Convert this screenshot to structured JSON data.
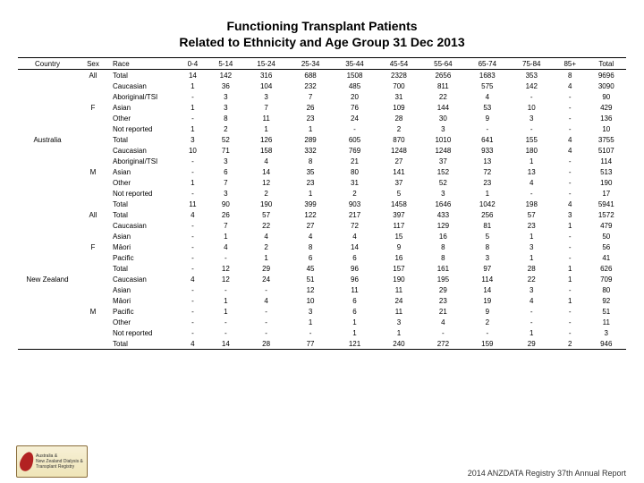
{
  "title": {
    "line1": "Functioning Transplant Patients",
    "line2": "Related to Ethnicity and Age Group 31 Dec 2013",
    "fontsize": 14,
    "color": "#000000"
  },
  "colors": {
    "background": "#ffffff",
    "border": "#000000",
    "text": "#000000",
    "logo_bg_top": "#f7f0d6",
    "logo_bg_bottom": "#efe5b8",
    "logo_border": "#8a6d3b",
    "logo_kidney": "#b22222"
  },
  "columns": [
    "Country",
    "Sex",
    "Race",
    "0-4",
    "5-14",
    "15-24",
    "25-34",
    "35-44",
    "45-54",
    "55-64",
    "65-74",
    "75-84",
    "85+",
    "Total"
  ],
  "rows": [
    {
      "country": "",
      "sex": "All",
      "race": "Total",
      "v": [
        "14",
        "142",
        "316",
        "688",
        "1508",
        "2328",
        "2656",
        "1683",
        "353",
        "8",
        "9696"
      ]
    },
    {
      "country": "",
      "sex": "",
      "race": "Caucasian",
      "v": [
        "1",
        "36",
        "104",
        "232",
        "485",
        "700",
        "811",
        "575",
        "142",
        "4",
        "3090"
      ]
    },
    {
      "country": "",
      "sex": "",
      "race": "Aboriginal/TSI",
      "v": [
        "-",
        "3",
        "3",
        "7",
        "20",
        "31",
        "22",
        "4",
        "-",
        "-",
        "90"
      ]
    },
    {
      "country": "",
      "sex": "F",
      "race": "Asian",
      "v": [
        "1",
        "3",
        "7",
        "26",
        "76",
        "109",
        "144",
        "53",
        "10",
        "-",
        "429"
      ]
    },
    {
      "country": "",
      "sex": "",
      "race": "Other",
      "v": [
        "-",
        "8",
        "11",
        "23",
        "24",
        "28",
        "30",
        "9",
        "3",
        "-",
        "136"
      ]
    },
    {
      "country": "",
      "sex": "",
      "race": "Not reported",
      "v": [
        "1",
        "2",
        "1",
        "1",
        "-",
        "2",
        "3",
        "-",
        "-",
        "-",
        "10"
      ]
    },
    {
      "country": "Australia",
      "sex": "",
      "race": "Total",
      "v": [
        "3",
        "52",
        "126",
        "289",
        "605",
        "870",
        "1010",
        "641",
        "155",
        "4",
        "3755"
      ]
    },
    {
      "country": "",
      "sex": "",
      "race": "Caucasian",
      "v": [
        "10",
        "71",
        "158",
        "332",
        "769",
        "1248",
        "1248",
        "933",
        "180",
        "4",
        "5107"
      ]
    },
    {
      "country": "",
      "sex": "",
      "race": "Aboriginal/TSI",
      "v": [
        "-",
        "3",
        "4",
        "8",
        "21",
        "27",
        "37",
        "13",
        "1",
        "-",
        "114"
      ]
    },
    {
      "country": "",
      "sex": "M",
      "race": "Asian",
      "v": [
        "-",
        "6",
        "14",
        "35",
        "80",
        "141",
        "152",
        "72",
        "13",
        "-",
        "513"
      ]
    },
    {
      "country": "",
      "sex": "",
      "race": "Other",
      "v": [
        "1",
        "7",
        "12",
        "23",
        "31",
        "37",
        "52",
        "23",
        "4",
        "-",
        "190"
      ]
    },
    {
      "country": "",
      "sex": "",
      "race": "Not reported",
      "v": [
        "-",
        "3",
        "2",
        "1",
        "2",
        "5",
        "3",
        "1",
        "-",
        "-",
        "17"
      ]
    },
    {
      "country": "",
      "sex": "",
      "race": "Total",
      "v": [
        "11",
        "90",
        "190",
        "399",
        "903",
        "1458",
        "1646",
        "1042",
        "198",
        "4",
        "5941"
      ]
    },
    {
      "country": "",
      "sex": "All",
      "race": "Total",
      "v": [
        "4",
        "26",
        "57",
        "122",
        "217",
        "397",
        "433",
        "256",
        "57",
        "3",
        "1572"
      ]
    },
    {
      "country": "",
      "sex": "",
      "race": "Caucasian",
      "v": [
        "-",
        "7",
        "22",
        "27",
        "72",
        "117",
        "129",
        "81",
        "23",
        "1",
        "479"
      ]
    },
    {
      "country": "",
      "sex": "",
      "race": "Asian",
      "v": [
        "-",
        "1",
        "4",
        "4",
        "4",
        "15",
        "16",
        "5",
        "1",
        "-",
        "50"
      ]
    },
    {
      "country": "",
      "sex": "F",
      "race": "Māori",
      "v": [
        "-",
        "4",
        "2",
        "8",
        "14",
        "9",
        "8",
        "8",
        "3",
        "-",
        "56"
      ]
    },
    {
      "country": "",
      "sex": "",
      "race": "Pacific",
      "v": [
        "-",
        "-",
        "1",
        "6",
        "6",
        "16",
        "8",
        "3",
        "1",
        "-",
        "41"
      ]
    },
    {
      "country": "",
      "sex": "",
      "race": "Total",
      "v": [
        "-",
        "12",
        "29",
        "45",
        "96",
        "157",
        "161",
        "97",
        "28",
        "1",
        "626"
      ]
    },
    {
      "country": "New Zealand",
      "sex": "",
      "race": "Caucasian",
      "v": [
        "4",
        "12",
        "24",
        "51",
        "96",
        "190",
        "195",
        "114",
        "22",
        "1",
        "709"
      ]
    },
    {
      "country": "",
      "sex": "",
      "race": "Asian",
      "v": [
        "-",
        "-",
        "-",
        "12",
        "11",
        "11",
        "29",
        "14",
        "3",
        "-",
        "80"
      ]
    },
    {
      "country": "",
      "sex": "",
      "race": "Māori",
      "v": [
        "-",
        "1",
        "4",
        "10",
        "6",
        "24",
        "23",
        "19",
        "4",
        "1",
        "92"
      ]
    },
    {
      "country": "",
      "sex": "M",
      "race": "Pacific",
      "v": [
        "-",
        "1",
        "-",
        "3",
        "6",
        "11",
        "21",
        "9",
        "-",
        "-",
        "51"
      ]
    },
    {
      "country": "",
      "sex": "",
      "race": "Other",
      "v": [
        "-",
        "-",
        "-",
        "1",
        "1",
        "3",
        "4",
        "2",
        "-",
        "-",
        "11"
      ]
    },
    {
      "country": "",
      "sex": "",
      "race": "Not reported",
      "v": [
        "-",
        "-",
        "-",
        "-",
        "1",
        "1",
        "-",
        "-",
        "1",
        "-",
        "3"
      ]
    },
    {
      "country": "",
      "sex": "",
      "race": "Total",
      "v": [
        "4",
        "14",
        "28",
        "77",
        "121",
        "240",
        "272",
        "159",
        "29",
        "2",
        "946"
      ]
    }
  ],
  "footer": "2014 ANZDATA Registry 37th Annual Report",
  "footer_fontsize": 9,
  "logo_text": "Australia &\nNew Zealand Dialysis &\nTransplant Registry",
  "table_style": {
    "fontsize": 8,
    "header_border_color": "#000000",
    "cell_align": "center",
    "race_align": "left"
  }
}
